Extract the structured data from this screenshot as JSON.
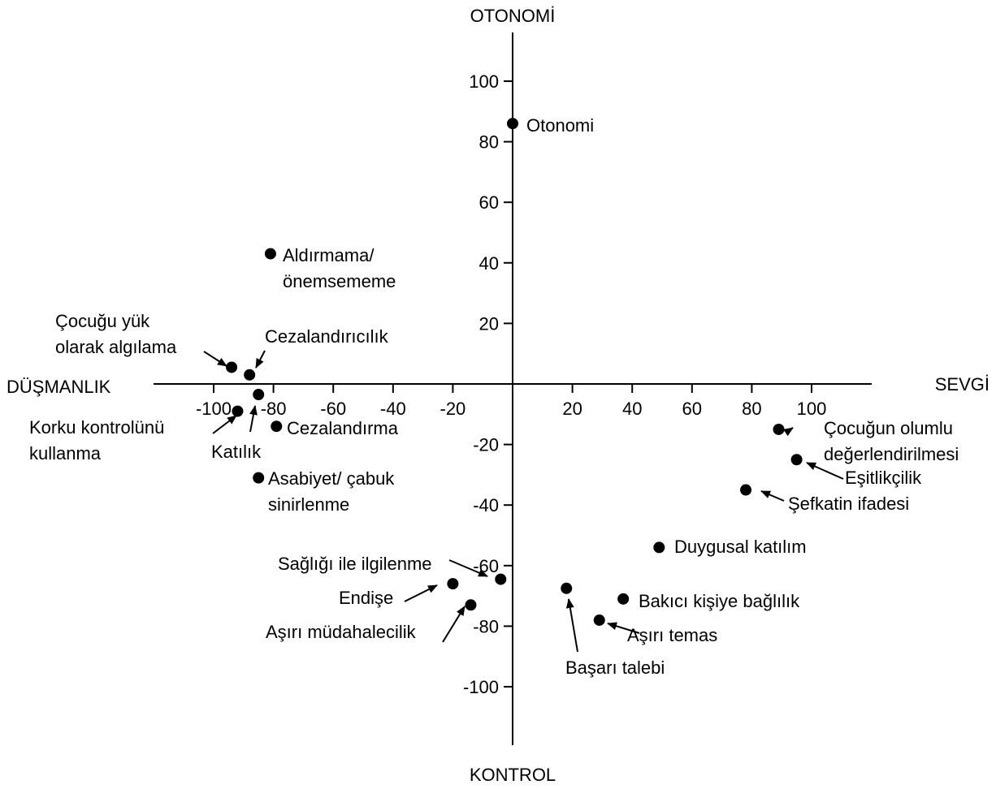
{
  "chart_data": {
    "type": "scatter",
    "axis_titles": {
      "top": "OTONOMİ",
      "bottom": "KONTROL",
      "left": "DÜŞMANLIK",
      "right": "SEVGİ"
    },
    "x_ticks": [
      {
        "value": -100,
        "label": "-100"
      },
      {
        "value": -80,
        "label": "-80"
      },
      {
        "value": -60,
        "label": "-60"
      },
      {
        "value": -40,
        "label": "-40"
      },
      {
        "value": -20,
        "label": "-20"
      },
      {
        "value": 20,
        "label": "20"
      },
      {
        "value": 40,
        "label": "40"
      },
      {
        "value": 60,
        "label": "60"
      },
      {
        "value": 80,
        "label": "80"
      },
      {
        "value": 100,
        "label": "100"
      }
    ],
    "y_ticks": [
      {
        "value": 100,
        "label": "100"
      },
      {
        "value": 80,
        "label": "80"
      },
      {
        "value": 60,
        "label": "60"
      },
      {
        "value": 40,
        "label": "40"
      },
      {
        "value": 20,
        "label": "20"
      },
      {
        "value": -20,
        "label": "-20"
      },
      {
        "value": -40,
        "label": "-40"
      },
      {
        "value": -60,
        "label": "-60"
      },
      {
        "value": -80,
        "label": "-80"
      },
      {
        "value": -100,
        "label": "-100"
      }
    ],
    "xlim": [
      -122,
      123
    ],
    "ylim": [
      -118,
      122
    ],
    "points": [
      {
        "name": "Otonomi",
        "x": 0,
        "y": 86
      },
      {
        "name": "Aldırmama/ önemsememe",
        "x": -81,
        "y": 43
      },
      {
        "name": "Çocuğu yük olarak algılama",
        "x": -94,
        "y": 5.5
      },
      {
        "name": "Cezalandırıcılık",
        "x": -88,
        "y": 3
      },
      {
        "name": "Katılık",
        "x": -85,
        "y": -3.5
      },
      {
        "name": "Korku kontrolünü kullanma",
        "x": -92,
        "y": -9
      },
      {
        "name": "Cezalandırma",
        "x": -79,
        "y": -14
      },
      {
        "name": "Asabiyet/ çabuk sinirlenme",
        "x": -85,
        "y": -31
      },
      {
        "name": "Sağlığı ile ilgilenme",
        "x": -4,
        "y": -64.5
      },
      {
        "name": "Endişe",
        "x": -20,
        "y": -66
      },
      {
        "name": "Aşırı müdahalecilik",
        "x": -14,
        "y": -73
      },
      {
        "name": "Başarı talebi",
        "x": 18,
        "y": -67.5
      },
      {
        "name": "Bakıcı kişiye bağlılık",
        "x": 37,
        "y": -71
      },
      {
        "name": "Aşırı temas",
        "x": 29,
        "y": -78
      },
      {
        "name": "Duygusal katılım",
        "x": 49,
        "y": -54
      },
      {
        "name": "Çocuğun olumlu değerlendirilmesi",
        "x": 89,
        "y": -15
      },
      {
        "name": "Eşitlikçilik",
        "x": 95,
        "y": -25
      },
      {
        "name": "Şefkatin ifadesi",
        "x": 78,
        "y": -35
      }
    ],
    "labels": [
      {
        "lines": [
          "Otonomi"
        ],
        "ref": 0
      },
      {
        "lines": [
          "Aldırmama/",
          "önemsememe"
        ],
        "ref": 1
      },
      {
        "lines": [
          "Çocuğu yük",
          "olarak algılama"
        ],
        "ref": 2
      },
      {
        "lines": [
          "Cezalandırıcılık"
        ],
        "ref": 3
      },
      {
        "lines": [
          "Katılık"
        ],
        "ref": 4
      },
      {
        "lines": [
          "Korku kontrolünü",
          "kullanma"
        ],
        "ref": 5
      },
      {
        "lines": [
          "Cezalandırma"
        ],
        "ref": 6
      },
      {
        "lines": [
          "Asabiyet/ çabuk",
          "sinirlenme"
        ],
        "ref": 7
      },
      {
        "lines": [
          "Sağlığı ile ilgilenme"
        ],
        "ref": 8
      },
      {
        "lines": [
          "Endişe"
        ],
        "ref": 9
      },
      {
        "lines": [
          "Aşırı müdahalecilik"
        ],
        "ref": 10
      },
      {
        "lines": [
          "Başarı talebi"
        ],
        "ref": 11
      },
      {
        "lines": [
          "Bakıcı kişiye bağlılık"
        ],
        "ref": 12
      },
      {
        "lines": [
          "Aşırı temas"
        ],
        "ref": 13
      },
      {
        "lines": [
          "Duygusal katılım"
        ],
        "ref": 14
      },
      {
        "lines": [
          "Çocuğun olumlu",
          "değerlendirilmesi"
        ],
        "ref": 15
      },
      {
        "lines": [
          "Eşitlikçilik"
        ],
        "ref": 16
      },
      {
        "lines": [
          "Şefkatin ifadesi"
        ],
        "ref": 17
      }
    ],
    "grid": false,
    "legend": "none"
  }
}
